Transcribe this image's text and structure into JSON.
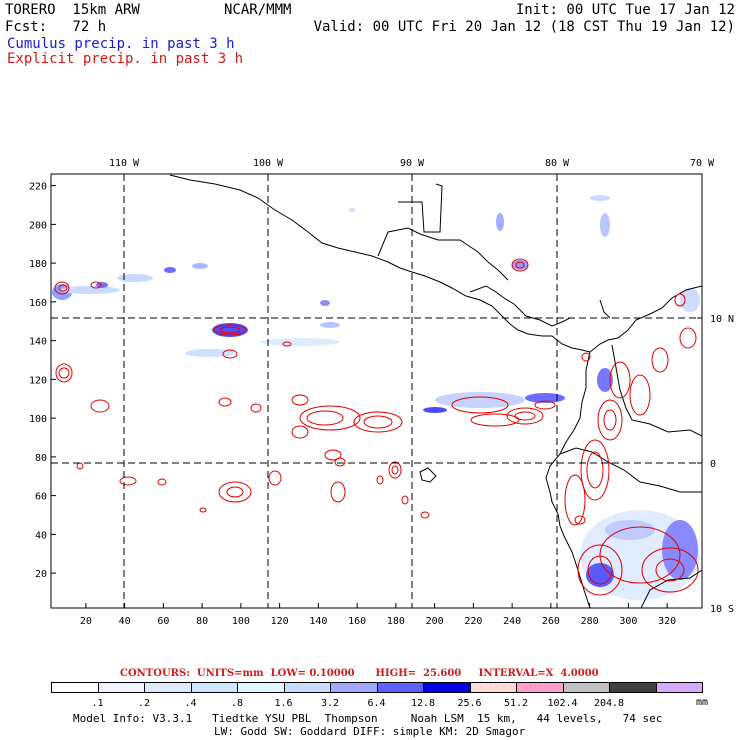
{
  "header": {
    "model_name": "TORERO  15km ARW",
    "org": "NCAR/MMM",
    "init": "Init: 00 UTC Tue 17 Jan 12",
    "fcst": "Fcst:   72 h",
    "valid": "Valid: 00 UTC Fri 20 Jan 12 (18 CST Thu 19 Jan 12)",
    "legend_cumulus": "Cumulus precip. in past 3 h",
    "legend_explicit": "Explicit precip. in past 3 h"
  },
  "map": {
    "lon_labels": [
      "110 W",
      "100 W",
      "90 W",
      "80 W",
      "70 W"
    ],
    "lat_labels": [
      "10 N",
      "0",
      "10 S"
    ],
    "x_ticks": [
      "20",
      "40",
      "60",
      "80",
      "100",
      "120",
      "140",
      "160",
      "180",
      "200",
      "220",
      "240",
      "260",
      "280",
      "300",
      "320"
    ],
    "y_ticks": [
      "220",
      "200",
      "180",
      "160",
      "140",
      "120",
      "100",
      "80",
      "60",
      "40",
      "20"
    ]
  },
  "contours": {
    "text": "CONTOURS:  UNITS=mm  LOW= 0.10000      HIGH=  25.600     INTERVAL=X  4.0000"
  },
  "colorbar": {
    "colors": [
      "#ffffff",
      "#f0f4ff",
      "#e0eaff",
      "#cce6ff",
      "#e0f8ff",
      "#c8dcff",
      "#a0a8ff",
      "#6060ff",
      "#0000e6",
      "#ffd8d8",
      "#ff9ec8",
      "#c0c0c0",
      "#404040",
      "#d8a8ff"
    ],
    "labels": [
      ".1",
      ".2",
      ".4",
      ".8",
      "1.6",
      "3.2",
      "6.4",
      "12.8",
      "25.6",
      "51.2",
      "102.4",
      "204.8"
    ],
    "unit": "mm"
  },
  "footer": {
    "line1": "Model Info: V3.3.1   Tiedtke YSU PBL  Thompson     Noah LSM  15 km,   44 levels,   74 sec",
    "line2": "LW: Godd SW: Goddard DIFF: simple KM: 2D Smagor"
  }
}
